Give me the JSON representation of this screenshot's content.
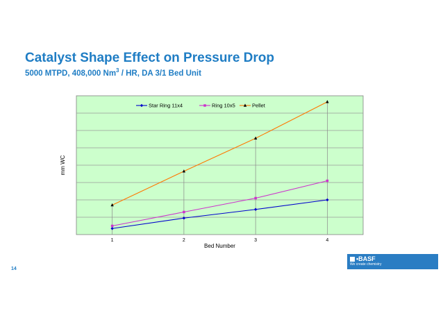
{
  "header": {
    "title": "Catalyst Shape Effect on Pressure Drop",
    "subtitle_main": "5000 MTPD, 408,000 Nm",
    "subtitle_sup": "3",
    "subtitle_rest": " / HR, DA 3/1 Bed Unit"
  },
  "footer": {
    "page_number": "14",
    "logo_text": "BASF",
    "logo_tagline": "We create chemistry"
  },
  "colors": {
    "plot_background": "#ccffcc",
    "grid": "#9a9a9a",
    "star_ring": "#0000cc",
    "ring": "#cc33cc",
    "pellet": "#ff7700",
    "title": "#1f7dc4"
  },
  "chart_data": {
    "type": "line",
    "title": "",
    "xlabel": "Bed Number",
    "ylabel": "mm WC",
    "x": [
      1,
      2,
      3,
      4
    ],
    "x_tick_labels": [
      "1",
      "2",
      "3",
      "4"
    ],
    "ylim": [
      0,
      8
    ],
    "y_gridlines": 8,
    "y_tick_labels_shown": false,
    "grid": true,
    "legend_position": "top",
    "series": [
      {
        "name": "Star Ring 11x4",
        "marker": "diamond",
        "values": [
          0.35,
          0.95,
          1.45,
          2.0
        ]
      },
      {
        "name": "Ring 10x5",
        "marker": "square",
        "values": [
          0.5,
          1.3,
          2.1,
          3.1
        ]
      },
      {
        "name": "Pellet",
        "marker": "triangle",
        "values": [
          1.7,
          3.65,
          5.55,
          7.65
        ]
      }
    ]
  }
}
